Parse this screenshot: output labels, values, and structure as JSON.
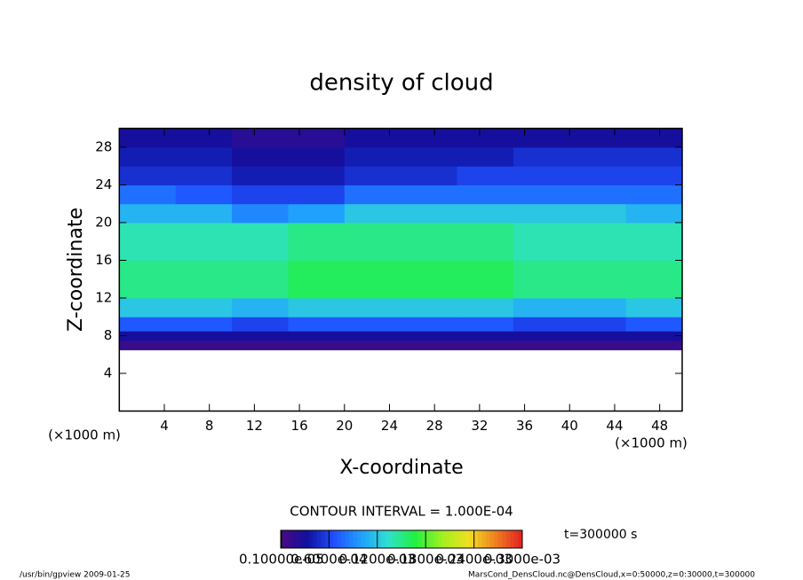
{
  "chart_data": {
    "type": "heatmap",
    "title": "density of cloud",
    "x_label": "X-coordinate",
    "y_label": "Z-coordinate",
    "x_unit": "(×1000 m)",
    "y_unit": "(×1000 m)",
    "contour_note": "CONTOUR INTERVAL = 1.000E-04",
    "time_note": "t=300000 s",
    "footer_left": "/usr/bin/gpview   2009-01-25",
    "footer_right": "MarsCond_DensCloud.nc@DensCloud,x=0:50000,z=0:30000,t=300000",
    "xlim": [
      0,
      50
    ],
    "ylim": [
      0,
      30
    ],
    "xticks": [
      4,
      8,
      12,
      16,
      20,
      24,
      28,
      32,
      36,
      40,
      44,
      48
    ],
    "yticks": [
      4,
      8,
      12,
      16,
      20,
      24,
      28
    ],
    "x_edges": [
      0,
      5,
      10,
      15,
      20,
      25,
      30,
      35,
      40,
      45,
      50
    ],
    "y_edges": [
      6.5,
      7.5,
      8.5,
      10,
      12,
      16,
      20,
      22,
      24,
      26,
      28,
      30
    ],
    "values": [
      [
        1e-05,
        1e-05,
        1e-05,
        1e-05,
        1e-05,
        1e-05,
        1e-05,
        1e-05,
        1e-05,
        1e-05
      ],
      [
        3e-05,
        3e-05,
        3e-05,
        3e-05,
        3e-05,
        3e-05,
        3e-05,
        3e-05,
        3e-05,
        3e-05
      ],
      [
        7e-05,
        7e-05,
        6e-05,
        7e-05,
        7e-05,
        7e-05,
        7e-05,
        6e-05,
        6e-05,
        7e-05
      ],
      [
        0.00012,
        0.00012,
        0.00011,
        0.00012,
        0.00012,
        0.00012,
        0.00012,
        0.00011,
        0.00011,
        0.00012
      ],
      [
        0.00015,
        0.00015,
        0.00015,
        0.00016,
        0.00016,
        0.00016,
        0.00016,
        0.00015,
        0.00015,
        0.00015
      ],
      [
        0.00014,
        0.00014,
        0.00014,
        0.00015,
        0.00015,
        0.00015,
        0.00015,
        0.00014,
        0.00014,
        0.00014
      ],
      [
        0.00011,
        0.00011,
        9e-05,
        0.0001,
        0.00012,
        0.00012,
        0.00012,
        0.00012,
        0.00012,
        0.00011
      ],
      [
        8e-05,
        7e-05,
        6e-05,
        6e-05,
        8e-05,
        8e-05,
        8e-05,
        8e-05,
        8e-05,
        8e-05
      ],
      [
        5e-05,
        5e-05,
        4e-05,
        4e-05,
        5e-05,
        5e-05,
        6e-05,
        6e-05,
        6e-05,
        6e-05
      ],
      [
        4e-05,
        4e-05,
        3e-05,
        3e-05,
        4e-05,
        4e-05,
        4e-05,
        5e-05,
        5e-05,
        5e-05
      ],
      [
        3e-05,
        3e-05,
        2e-05,
        2e-05,
        3e-05,
        3e-05,
        3e-05,
        3e-05,
        3e-05,
        3e-05
      ]
    ],
    "clim": [
      0,
      0.0003
    ],
    "colormap": [
      "#4b0a82",
      "#1010a0",
      "#2050ff",
      "#20a0ff",
      "#30e0d0",
      "#20f040",
      "#a0f020",
      "#f0e020",
      "#f08020",
      "#e02020"
    ],
    "cticks": [
      {
        "value": 1e-06,
        "label": "0.10000e-05"
      },
      {
        "value": 6e-05,
        "label": "0.6000e-04"
      },
      {
        "value": 0.00012,
        "label": "0.1200e-03"
      },
      {
        "value": 0.00018,
        "label": "0.1800e-03"
      },
      {
        "value": 0.00024,
        "label": "0.2400e-03"
      },
      {
        "value": 0.0003,
        "label": "0.3000e-03"
      }
    ]
  }
}
